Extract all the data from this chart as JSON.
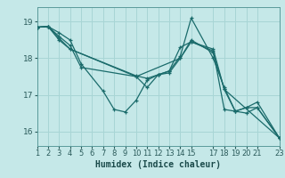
{
  "xlabel": "Humidex (Indice chaleur)",
  "bg_color": "#c5e8e8",
  "grid_color": "#a8d5d5",
  "line_color": "#1a6b6b",
  "xlim": [
    1,
    23
  ],
  "ylim": [
    15.6,
    19.4
  ],
  "yticks": [
    16,
    17,
    18,
    19
  ],
  "xtick_positions": [
    1,
    2,
    3,
    4,
    5,
    6,
    7,
    8,
    9,
    10,
    11,
    12,
    13,
    14,
    15,
    17,
    18,
    19,
    20,
    21,
    23
  ],
  "xtick_labels": [
    "1",
    "2",
    "3",
    "4",
    "5",
    "6",
    "7",
    "8",
    "9",
    "10",
    "11",
    "12",
    "13",
    "14",
    "15",
    "17",
    "18",
    "19",
    "20",
    "21",
    "23"
  ],
  "lines": [
    {
      "x": [
        1,
        2,
        3,
        4,
        5,
        7,
        8,
        9,
        10,
        11,
        12,
        13,
        14,
        15,
        17,
        18,
        19,
        20,
        21,
        23
      ],
      "y": [
        18.85,
        18.87,
        18.7,
        18.5,
        17.85,
        17.1,
        16.6,
        16.53,
        16.85,
        17.4,
        17.55,
        17.65,
        18.05,
        19.1,
        18.0,
        17.2,
        16.55,
        16.65,
        16.8,
        15.82
      ]
    },
    {
      "x": [
        1,
        2,
        3,
        4,
        5,
        10,
        11,
        12,
        13,
        14,
        15,
        17,
        18,
        19,
        20,
        21,
        23
      ],
      "y": [
        18.85,
        18.87,
        18.6,
        18.35,
        17.75,
        17.5,
        17.2,
        17.55,
        17.65,
        18.3,
        18.45,
        18.2,
        16.6,
        16.55,
        16.65,
        16.65,
        15.82
      ]
    },
    {
      "x": [
        1,
        2,
        3,
        4,
        10,
        11,
        12,
        13,
        14,
        15,
        17,
        18,
        19,
        20,
        21,
        23
      ],
      "y": [
        18.85,
        18.87,
        18.55,
        18.25,
        17.52,
        17.45,
        17.55,
        17.6,
        18.0,
        18.45,
        18.25,
        17.15,
        16.55,
        16.5,
        16.65,
        15.82
      ]
    },
    {
      "x": [
        1,
        2,
        3,
        4,
        10,
        14,
        15,
        17,
        18,
        23
      ],
      "y": [
        18.85,
        18.87,
        18.5,
        18.25,
        17.5,
        18.0,
        18.5,
        18.15,
        17.15,
        15.82
      ]
    }
  ]
}
